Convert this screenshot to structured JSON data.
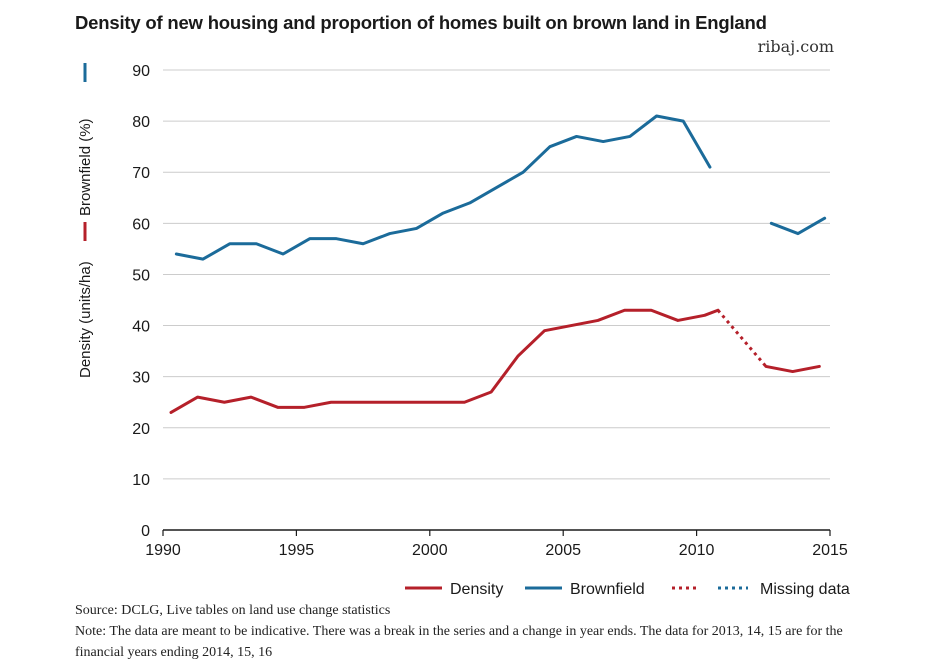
{
  "title": "Density of new housing and proportion of homes built on brown land in England",
  "brand": "ribaj.com",
  "footer": {
    "source": "Source: DCLG, Live tables on land use change statistics",
    "note": "Note: The data are meant to be indicative. There was a break in the series and a change in year ends. The data for 2013, 14, 15 are for the financial years ending 2014, 15, 16"
  },
  "colors": {
    "density": "#b5202a",
    "brownfield": "#1b6b9a",
    "grid": "#cccccc",
    "axis": "#1a1a1a"
  },
  "chart_data": {
    "type": "line",
    "title": "Density of new housing and proportion of homes built on brown land in England",
    "ylabel_brownfield": "Brownfield (%)",
    "ylabel_density": "Density (units/ha)",
    "xlim": [
      1990,
      2015
    ],
    "ylim": [
      0,
      90
    ],
    "x_ticks": [
      1990,
      1995,
      2000,
      2005,
      2010,
      2015
    ],
    "y_ticks": [
      0,
      10,
      20,
      30,
      40,
      50,
      60,
      70,
      80,
      90
    ],
    "grid": "horizontal",
    "legend": [
      {
        "label": "Density",
        "style": "solid",
        "color": "#b5202a"
      },
      {
        "label": "Brownfield",
        "style": "solid",
        "color": "#1b6b9a"
      },
      {
        "label": "Missing data",
        "style": "dotted",
        "color": "mixed"
      }
    ],
    "legend_position": "bottom-right",
    "series": [
      {
        "name": "Brownfield",
        "color": "#1b6b9a",
        "x": [
          1990.5,
          1991.5,
          1992.5,
          1993.5,
          1994.5,
          1995.5,
          1996.5,
          1997.5,
          1998.5,
          1999.5,
          2000.5,
          2001.5,
          2002.5,
          2003.5,
          2004.5,
          2005.5,
          2006.5,
          2007.5,
          2008.5,
          2009.5,
          2010.5,
          2012.8,
          2013.8,
          2014.8
        ],
        "y": [
          54,
          53,
          56,
          56,
          54,
          57,
          57,
          56,
          58,
          59,
          62,
          64,
          67,
          70,
          75,
          77,
          76,
          77,
          81,
          80,
          71,
          60,
          58,
          61
        ],
        "missing_segment": [
          2010.8,
          2012.8
        ]
      },
      {
        "name": "Density",
        "color": "#b5202a",
        "x": [
          1990.3,
          1991.3,
          1992.3,
          1993.3,
          1994.3,
          1995.3,
          1996.3,
          1997.3,
          1998.3,
          1999.3,
          2000.3,
          2001.3,
          2002.3,
          2003.3,
          2004.3,
          2005.3,
          2006.3,
          2007.3,
          2008.3,
          2009.3,
          2010.3,
          2010.8,
          2012.6,
          2013.6,
          2014.6
        ],
        "y": [
          23,
          26,
          25,
          26,
          24,
          24,
          25,
          25,
          25,
          25,
          25,
          25,
          27,
          34,
          39,
          40,
          41,
          43,
          43,
          41,
          42,
          43,
          32,
          31,
          32
        ],
        "missing_segment": [
          2010.8,
          2012.6
        ]
      }
    ]
  }
}
